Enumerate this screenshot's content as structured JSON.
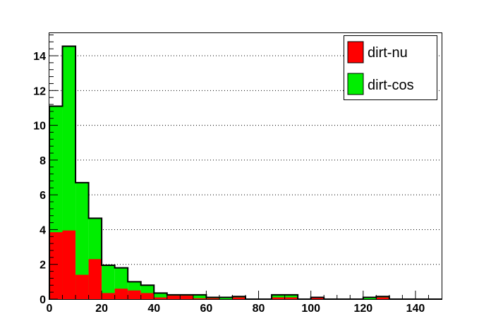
{
  "chart_data": {
    "type": "bar",
    "stacked": true,
    "title": "",
    "xlabel": "",
    "ylabel": "",
    "xlim": [
      0,
      150
    ],
    "ylim": [
      0,
      15.3
    ],
    "grid": {
      "x": false,
      "y": true
    },
    "legend": {
      "placement": "top-right"
    },
    "bin_edges": [
      0,
      5,
      10,
      15,
      20,
      25,
      30,
      35,
      40,
      45,
      50,
      55,
      60,
      65,
      70,
      75,
      80,
      85,
      90,
      95,
      100,
      105,
      110,
      115,
      120,
      125,
      130,
      135,
      140,
      145,
      150
    ],
    "x_ticks": [
      0,
      20,
      40,
      60,
      80,
      100,
      120,
      140
    ],
    "x_tick_labels": [
      "0",
      "20",
      "40",
      "60",
      "80",
      "100",
      "120",
      "140"
    ],
    "y_ticks": [
      0,
      2,
      4,
      6,
      8,
      10,
      12,
      14
    ],
    "y_tick_labels": [
      "0",
      "2",
      "4",
      "6",
      "8",
      "10",
      "12",
      "14"
    ],
    "series": [
      {
        "name": "dirt-nu",
        "color": "#ff0000",
        "values": [
          3.85,
          3.95,
          1.4,
          2.3,
          0.35,
          0.6,
          0.5,
          0.35,
          0.1,
          0.2,
          0.2,
          0.05,
          0.05,
          0,
          0.1,
          0,
          0,
          0.1,
          0.1,
          0,
          0.1,
          0,
          0,
          0,
          0,
          0.1,
          0,
          0,
          0,
          0
        ]
      },
      {
        "name": "dirt-cos",
        "color": "#00ee00",
        "values": [
          7.25,
          10.6,
          5.3,
          2.35,
          1.6,
          1.2,
          0.5,
          0.45,
          0.25,
          0.05,
          0.05,
          0.2,
          0.05,
          0.1,
          0.05,
          0,
          0,
          0.15,
          0.15,
          0,
          0,
          0,
          0,
          0,
          0.1,
          0.05,
          0,
          0,
          0,
          0
        ]
      }
    ]
  }
}
